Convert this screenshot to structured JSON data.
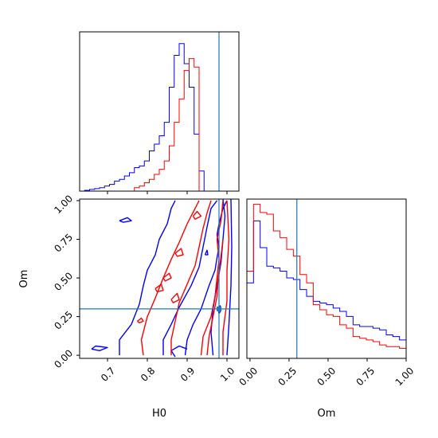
{
  "chart_data": [
    {
      "panel": "hist-H0",
      "type": "histogram",
      "xlim": [
        0.63,
        1.03
      ],
      "truth": 0.98,
      "bin_start": 0.63,
      "bin_width": 0.0125,
      "series": [
        {
          "color": "#0000ff",
          "counts": [
            0,
            0.5,
            1,
            1.5,
            2,
            3,
            4,
            6,
            7,
            9,
            11,
            14,
            15,
            18,
            24,
            28,
            33,
            41,
            62,
            81,
            88,
            76,
            62,
            34,
            12,
            0
          ]
        },
        {
          "color": "#ff0000",
          "counts": [
            0,
            0,
            0,
            0,
            0,
            0,
            0,
            0,
            0,
            0,
            0,
            2,
            3,
            5,
            7,
            10,
            13,
            18,
            27,
            41,
            55,
            72,
            79,
            74,
            0,
            0
          ]
        }
      ]
    },
    {
      "panel": "hist-Om",
      "type": "histogram",
      "xlim": [
        -0.02,
        1.0
      ],
      "xlabel": "Om",
      "xticks": [
        "0.00",
        "0.25",
        "0.50",
        "0.75",
        "1.00"
      ],
      "xtick_values": [
        0.0,
        0.25,
        0.5,
        0.75,
        1.0
      ],
      "truth": 0.3,
      "bin_start": -0.02,
      "bin_width": 0.0425,
      "series": [
        {
          "color": "#0000ff",
          "counts": [
            45,
            82,
            66,
            55,
            54,
            52,
            48,
            47,
            41,
            37,
            34,
            33,
            32,
            30,
            28,
            25,
            20,
            19,
            19,
            18,
            17,
            14,
            13,
            11
          ]
        },
        {
          "color": "#ff0000",
          "counts": [
            52,
            92,
            87,
            86,
            76,
            72,
            65,
            61,
            50,
            45,
            32,
            29,
            26,
            25,
            20,
            18,
            13,
            12,
            11,
            10,
            8,
            7,
            7,
            6
          ]
        }
      ]
    },
    {
      "panel": "contour-H0-Om",
      "type": "contour",
      "xlabel": "H0",
      "ylabel": "Om",
      "xlim": [
        0.63,
        1.03
      ],
      "ylim": [
        -0.02,
        1.01
      ],
      "xticks": [
        "0.7",
        "0.8",
        "0.9",
        "1.0"
      ],
      "xtick_values": [
        0.7,
        0.8,
        0.9,
        1.0
      ],
      "yticks": [
        "0.00",
        "0.25",
        "0.50",
        "0.75",
        "1.00"
      ],
      "ytick_values": [
        0.0,
        0.25,
        0.5,
        0.75,
        1.0
      ],
      "truth": [
        0.98,
        0.3
      ],
      "series": [
        {
          "color": "#0000ff",
          "paths": [
            [
              [
                0.66,
                0.04
              ],
              [
                0.67,
                0.06
              ],
              [
                0.7,
                0.05
              ],
              [
                0.68,
                0.03
              ],
              [
                0.66,
                0.04
              ]
            ],
            [
              [
                0.73,
                0.0
              ],
              [
                0.73,
                0.1
              ],
              [
                0.76,
                0.2
              ],
              [
                0.78,
                0.33
              ],
              [
                0.79,
                0.45
              ],
              [
                0.8,
                0.55
              ],
              [
                0.82,
                0.65
              ],
              [
                0.83,
                0.75
              ],
              [
                0.85,
                0.85
              ],
              [
                0.86,
                0.95
              ],
              [
                0.87,
                1.0
              ]
            ],
            [
              [
                0.73,
                0.87
              ],
              [
                0.75,
                0.89
              ],
              [
                0.76,
                0.87
              ],
              [
                0.74,
                0.86
              ],
              [
                0.73,
                0.87
              ]
            ],
            [
              [
                0.84,
                0.0
              ],
              [
                0.84,
                0.1
              ],
              [
                0.86,
                0.2
              ],
              [
                0.88,
                0.31
              ],
              [
                0.91,
                0.45
              ],
              [
                0.93,
                0.57
              ],
              [
                0.94,
                0.7
              ],
              [
                0.95,
                0.83
              ],
              [
                0.96,
                0.95
              ],
              [
                0.975,
                1.0
              ]
            ],
            [
              [
                0.87,
                -0.01
              ],
              [
                0.86,
                0.03
              ],
              [
                0.88,
                0.06
              ],
              [
                0.9,
                0.04
              ]
            ],
            [
              [
                0.965,
                0.0
              ],
              [
                0.96,
                0.15
              ],
              [
                0.965,
                0.3
              ],
              [
                0.975,
                0.45
              ],
              [
                0.985,
                0.6
              ],
              [
                0.99,
                0.75
              ],
              [
                0.995,
                0.9
              ],
              [
                0.99,
                1.01
              ]
            ],
            [
              [
                0.895,
                0.0
              ],
              [
                0.9,
                0.1
              ],
              [
                0.915,
                0.2
              ],
              [
                0.935,
                0.3
              ],
              [
                0.955,
                0.45
              ],
              [
                0.97,
                0.55
              ],
              [
                0.975,
                0.63
              ],
              [
                0.98,
                0.7
              ],
              [
                0.975,
                0.78
              ],
              [
                0.98,
                0.85
              ],
              [
                0.99,
                0.95
              ],
              [
                1.0,
                1.0
              ]
            ],
            [
              [
                1.0,
                0.0
              ],
              [
                1.005,
                0.2
              ],
              [
                1.01,
                0.45
              ],
              [
                1.012,
                0.7
              ],
              [
                1.01,
                1.01
              ]
            ],
            [
              [
                0.945,
                0.65
              ],
              [
                0.95,
                0.68
              ],
              [
                0.952,
                0.65
              ],
              [
                0.945,
                0.65
              ]
            ],
            [
              [
                0.98,
                0.27
              ],
              [
                0.985,
                0.29
              ],
              [
                0.983,
                0.32
              ],
              [
                0.978,
                0.3
              ],
              [
                0.98,
                0.27
              ]
            ]
          ]
        },
        {
          "color": "#ff0000",
          "paths": [
            [
              [
                0.79,
                0.0
              ],
              [
                0.785,
                0.1
              ],
              [
                0.8,
                0.25
              ],
              [
                0.82,
                0.37
              ],
              [
                0.84,
                0.5
              ],
              [
                0.86,
                0.62
              ],
              [
                0.88,
                0.73
              ],
              [
                0.9,
                0.85
              ],
              [
                0.92,
                0.95
              ],
              [
                0.93,
                1.0
              ]
            ],
            [
              [
                0.86,
                0.0
              ],
              [
                0.86,
                0.1
              ],
              [
                0.87,
                0.22
              ],
              [
                0.88,
                0.34
              ],
              [
                0.9,
                0.46
              ],
              [
                0.92,
                0.58
              ],
              [
                0.93,
                0.7
              ],
              [
                0.94,
                0.82
              ],
              [
                0.95,
                0.92
              ],
              [
                0.96,
                1.0
              ]
            ],
            [
              [
                0.99,
                0.0
              ],
              [
                0.99,
                0.15
              ],
              [
                1.0,
                0.35
              ],
              [
                1.0,
                0.55
              ],
              [
                1.005,
                0.75
              ],
              [
                1.0,
                1.0
              ]
            ],
            [
              [
                0.935,
                0.0
              ],
              [
                0.94,
                0.12
              ],
              [
                0.96,
                0.25
              ],
              [
                0.97,
                0.38
              ],
              [
                0.975,
                0.5
              ],
              [
                0.98,
                0.62
              ],
              [
                0.975,
                0.75
              ],
              [
                0.985,
                0.87
              ],
              [
                0.99,
                1.0
              ]
            ],
            [
              [
                0.95,
                0.0
              ],
              [
                0.955,
                0.12
              ],
              [
                0.965,
                0.25
              ],
              [
                0.975,
                0.38
              ],
              [
                0.978,
                0.5
              ],
              [
                0.985,
                0.64
              ],
              [
                0.99,
                0.75
              ]
            ],
            [
              [
                0.84,
                0.5
              ],
              [
                0.855,
                0.53
              ],
              [
                0.86,
                0.5
              ],
              [
                0.845,
                0.48
              ],
              [
                0.84,
                0.5
              ]
            ],
            [
              [
                0.82,
                0.43
              ],
              [
                0.835,
                0.46
              ],
              [
                0.84,
                0.42
              ],
              [
                0.825,
                0.41
              ],
              [
                0.82,
                0.43
              ]
            ],
            [
              [
                0.86,
                0.36
              ],
              [
                0.875,
                0.4
              ],
              [
                0.88,
                0.36
              ],
              [
                0.865,
                0.34
              ],
              [
                0.86,
                0.36
              ]
            ],
            [
              [
                0.775,
                0.22
              ],
              [
                0.785,
                0.24
              ],
              [
                0.79,
                0.22
              ],
              [
                0.78,
                0.21
              ],
              [
                0.775,
                0.22
              ]
            ],
            [
              [
                0.915,
                0.9
              ],
              [
                0.925,
                0.93
              ],
              [
                0.935,
                0.9
              ],
              [
                0.92,
                0.88
              ],
              [
                0.915,
                0.9
              ]
            ],
            [
              [
                0.87,
                0.66
              ],
              [
                0.885,
                0.69
              ],
              [
                0.89,
                0.65
              ],
              [
                0.875,
                0.64
              ],
              [
                0.87,
                0.66
              ]
            ]
          ]
        }
      ]
    }
  ]
}
